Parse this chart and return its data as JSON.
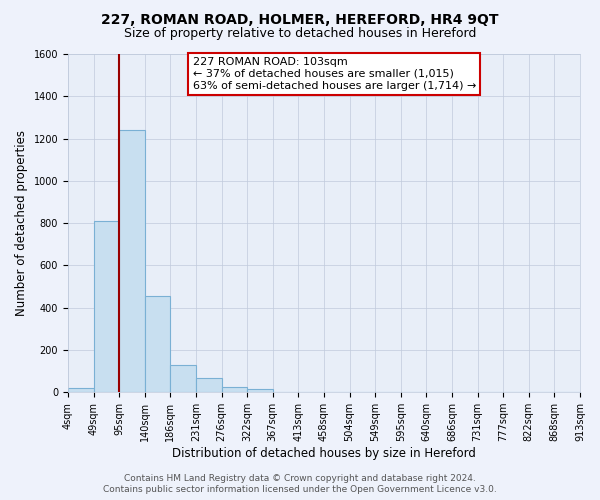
{
  "title": "227, ROMAN ROAD, HOLMER, HEREFORD, HR4 9QT",
  "subtitle": "Size of property relative to detached houses in Hereford",
  "xlabel": "Distribution of detached houses by size in Hereford",
  "ylabel": "Number of detached properties",
  "bar_values": [
    20,
    810,
    1240,
    455,
    130,
    65,
    25,
    15,
    0,
    0,
    0,
    0,
    0,
    0,
    0,
    0,
    0,
    0,
    0,
    0
  ],
  "bin_labels": [
    "4sqm",
    "49sqm",
    "95sqm",
    "140sqm",
    "186sqm",
    "231sqm",
    "276sqm",
    "322sqm",
    "367sqm",
    "413sqm",
    "458sqm",
    "504sqm",
    "549sqm",
    "595sqm",
    "640sqm",
    "686sqm",
    "731sqm",
    "777sqm",
    "822sqm",
    "868sqm",
    "913sqm"
  ],
  "bar_color": "#c8dff0",
  "bar_edge_color": "#7ab0d4",
  "vline_color": "#990000",
  "annotation_text": "227 ROMAN ROAD: 103sqm\n← 37% of detached houses are smaller (1,015)\n63% of semi-detached houses are larger (1,714) →",
  "ylim": [
    0,
    1600
  ],
  "yticks": [
    0,
    200,
    400,
    600,
    800,
    1000,
    1200,
    1400,
    1600
  ],
  "footer1": "Contains HM Land Registry data © Crown copyright and database right 2024.",
  "footer2": "Contains public sector information licensed under the Open Government Licence v3.0.",
  "bg_color": "#eef2fb",
  "plot_bg_color": "#e8eef8",
  "title_fontsize": 10,
  "subtitle_fontsize": 9,
  "axis_label_fontsize": 8.5,
  "tick_fontsize": 7,
  "annotation_fontsize": 8,
  "footer_fontsize": 6.5
}
